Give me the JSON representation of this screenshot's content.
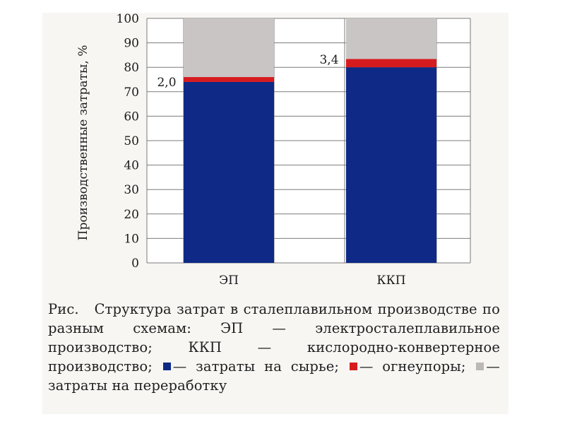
{
  "chart_data": {
    "type": "bar",
    "stacked": true,
    "categories": [
      "ЭП",
      "ККП"
    ],
    "ylabel": "Производственные затраты, %",
    "ylim": [
      0,
      100
    ],
    "yticks": [
      "0",
      "10",
      "20",
      "30",
      "40",
      "50",
      "60",
      "70",
      "80",
      "90",
      "100"
    ],
    "grid": true,
    "series": [
      {
        "key": "raw",
        "values": [
          74,
          80
        ],
        "color": "#0e2a86"
      },
      {
        "key": "refr",
        "values": [
          2.0,
          3.4
        ],
        "color": "#d61b1f"
      },
      {
        "key": "proc",
        "values": [
          24,
          16.6
        ],
        "color": "#cac5c5"
      }
    ],
    "annotations": [
      "2,0",
      "3,4"
    ]
  },
  "caption": {
    "label": "Рис.",
    "text1": "Структура затрат в сталеплавильном производстве по разным схемам: ЭП — электросталеплавильное производство; ККП — кислородно-конвертерное производство;",
    "item1": "— затраты на сырье;",
    "item2": "— огнеупоры;",
    "item3": "— затраты на переработку"
  }
}
